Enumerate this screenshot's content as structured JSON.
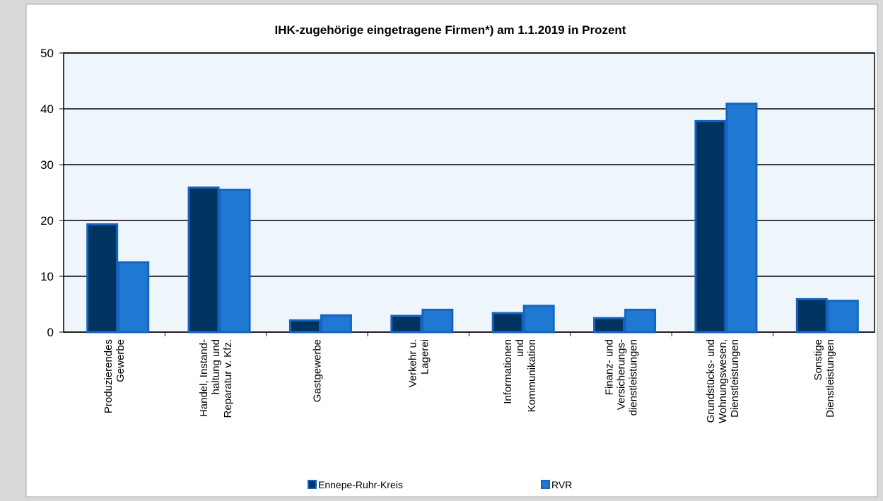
{
  "chart_data": {
    "type": "bar",
    "title": "IHK-zugehörige eingetragene Firmen*) am 1.1.2019 in Prozent",
    "categories": [
      "Produzierendes\nGewerbe",
      "Handel, Instand-\nhaltung und\nReparatur v. Kfz.",
      "Gastgewerbe",
      "Verkehr u.\nLagerei",
      "Informationen\nund\nKommunikation",
      "Finanz- und\nVersicherungs-\ndienstleistungen",
      "Grundstücks- und\nWohnungswesen,\nDienstleistungen",
      "Sonstige\nDienstleistungen"
    ],
    "series": [
      {
        "name": "Ennepe-Ruhr-Kreis",
        "color": "#00335f",
        "values": [
          19.3,
          25.9,
          2.1,
          2.9,
          3.4,
          2.5,
          37.8,
          5.9
        ]
      },
      {
        "name": "RVR",
        "color": "#1f78d1",
        "values": [
          12.5,
          25.5,
          3.0,
          4.0,
          4.7,
          4.0,
          40.9,
          5.6
        ]
      }
    ],
    "ylim": [
      0,
      50
    ],
    "yticks": [
      0,
      10,
      20,
      30,
      40,
      50
    ],
    "grid": true,
    "legend": "bottom"
  }
}
